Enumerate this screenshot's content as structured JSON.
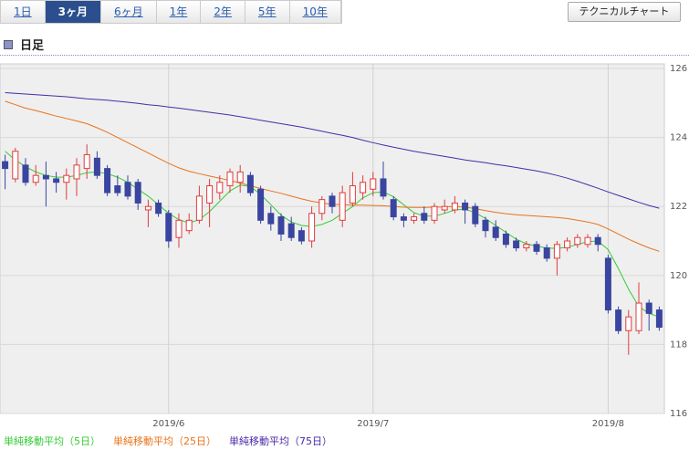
{
  "tabs": [
    "1日",
    "3ヶ月",
    "6ヶ月",
    "1年",
    "2年",
    "5年",
    "10年"
  ],
  "selected_tab_index": 1,
  "technical_button": "テクニカルチャート",
  "section_title": "日足",
  "chart_data": {
    "type": "candlestick",
    "categories": [
      null,
      null,
      null,
      null,
      null,
      null,
      null,
      null,
      null,
      null,
      null,
      null,
      null,
      null,
      null,
      null,
      "2019/6",
      null,
      null,
      null,
      null,
      null,
      null,
      null,
      null,
      null,
      null,
      null,
      null,
      null,
      null,
      null,
      null,
      null,
      null,
      null,
      "2019/7",
      null,
      null,
      null,
      null,
      null,
      null,
      null,
      null,
      null,
      null,
      null,
      null,
      null,
      null,
      null,
      null,
      null,
      null,
      null,
      null,
      null,
      null,
      "2019/8",
      null,
      null,
      null,
      null,
      null
    ],
    "open": [
      123.3,
      122.8,
      123.2,
      122.7,
      122.9,
      122.8,
      122.7,
      122.8,
      123.1,
      123.4,
      123.1,
      122.6,
      122.7,
      122.7,
      121.9,
      122.1,
      121.8,
      121.1,
      121.3,
      121.6,
      122.1,
      122.4,
      122.6,
      122.7,
      122.9,
      122.5,
      121.8,
      121.7,
      121.5,
      121.3,
      121.0,
      121.8,
      122.3,
      121.6,
      122.1,
      122.4,
      122.5,
      122.8,
      122.2,
      121.7,
      121.6,
      121.8,
      121.6,
      121.9,
      121.9,
      122.1,
      122.0,
      121.6,
      121.4,
      121.2,
      121.0,
      120.8,
      120.9,
      120.8,
      120.5,
      120.8,
      120.9,
      120.9,
      121.1,
      120.5,
      119.0,
      118.4,
      118.4,
      119.2,
      119.0
    ],
    "high": [
      123.5,
      123.7,
      123.4,
      123.2,
      123.3,
      123.0,
      123.1,
      123.4,
      123.8,
      123.6,
      123.2,
      122.9,
      122.9,
      122.8,
      122.2,
      122.2,
      121.9,
      121.8,
      121.8,
      122.6,
      122.8,
      122.9,
      123.1,
      123.2,
      123.0,
      122.6,
      122.0,
      121.8,
      121.7,
      121.4,
      122.0,
      122.3,
      122.4,
      122.6,
      123.0,
      122.9,
      123.0,
      123.3,
      122.3,
      121.8,
      121.8,
      122.0,
      122.1,
      122.2,
      122.3,
      122.2,
      122.1,
      121.7,
      121.6,
      121.3,
      121.1,
      121.0,
      121.0,
      120.9,
      121.0,
      121.1,
      121.2,
      121.2,
      121.2,
      120.6,
      119.1,
      119.0,
      119.8,
      119.3,
      119.1
    ],
    "low": [
      122.5,
      122.7,
      122.6,
      122.6,
      122.0,
      122.4,
      122.2,
      122.3,
      122.8,
      122.8,
      122.3,
      122.3,
      122.2,
      121.9,
      121.4,
      121.7,
      120.8,
      120.8,
      121.2,
      121.5,
      121.4,
      122.2,
      122.4,
      122.4,
      122.3,
      121.5,
      121.3,
      121.0,
      121.0,
      120.9,
      120.8,
      121.6,
      121.8,
      121.4,
      122.0,
      122.2,
      122.3,
      122.2,
      121.6,
      121.4,
      121.5,
      121.5,
      121.5,
      121.8,
      121.8,
      121.5,
      121.4,
      121.1,
      121.0,
      120.8,
      120.7,
      120.7,
      120.6,
      120.4,
      120.0,
      120.7,
      120.8,
      120.8,
      120.7,
      118.9,
      118.3,
      117.7,
      118.3,
      118.4,
      118.4
    ],
    "close": [
      123.1,
      123.6,
      122.7,
      122.9,
      122.8,
      122.7,
      122.9,
      123.2,
      123.5,
      122.9,
      122.4,
      122.4,
      122.3,
      122.1,
      122.0,
      121.8,
      121.0,
      121.6,
      121.6,
      122.3,
      122.6,
      122.7,
      123.0,
      123.0,
      122.4,
      121.6,
      121.5,
      121.2,
      121.1,
      121.0,
      121.8,
      122.2,
      122.0,
      122.4,
      122.6,
      122.7,
      122.8,
      122.3,
      121.7,
      121.6,
      121.7,
      121.6,
      122.0,
      122.0,
      122.1,
      121.9,
      121.5,
      121.3,
      121.1,
      120.9,
      120.8,
      120.9,
      120.7,
      120.5,
      120.9,
      121.0,
      121.1,
      121.1,
      120.9,
      119.0,
      118.4,
      118.8,
      119.2,
      118.9,
      118.5
    ],
    "up_color": "#e03c3c",
    "down_color": "#3a45a0",
    "series": [
      {
        "name": "単純移動平均（5日）",
        "color": "#33cc33",
        "values": [
          123.6,
          123.35,
          123.15,
          123.0,
          122.9,
          122.85,
          122.85,
          122.9,
          122.98,
          123.0,
          122.95,
          122.85,
          122.7,
          122.5,
          122.3,
          122.05,
          121.8,
          121.62,
          121.52,
          121.62,
          121.85,
          122.15,
          122.45,
          122.62,
          122.58,
          122.35,
          122.05,
          121.75,
          121.55,
          121.45,
          121.42,
          121.48,
          121.6,
          121.8,
          122.0,
          122.25,
          122.4,
          122.42,
          122.28,
          122.05,
          121.82,
          121.72,
          121.72,
          121.8,
          121.9,
          121.92,
          121.82,
          121.65,
          121.45,
          121.25,
          121.05,
          120.92,
          120.85,
          120.8,
          120.78,
          120.82,
          120.9,
          120.98,
          121.0,
          120.75,
          120.2,
          119.6,
          119.1,
          118.9,
          118.8
        ]
      },
      {
        "name": "単純移動平均（25日）",
        "color": "#e8731a",
        "values": [
          125.05,
          124.95,
          124.85,
          124.78,
          124.7,
          124.62,
          124.55,
          124.48,
          124.4,
          124.28,
          124.15,
          124.0,
          123.85,
          123.7,
          123.55,
          123.4,
          123.25,
          123.12,
          123.02,
          122.95,
          122.88,
          122.82,
          122.75,
          122.68,
          122.6,
          122.52,
          122.45,
          122.38,
          122.3,
          122.22,
          122.15,
          122.1,
          122.06,
          122.05,
          122.04,
          122.04,
          122.03,
          122.02,
          122.0,
          121.98,
          121.97,
          121.97,
          121.98,
          121.99,
          122.0,
          121.98,
          121.94,
          121.88,
          121.83,
          121.79,
          121.76,
          121.74,
          121.72,
          121.7,
          121.68,
          121.65,
          121.6,
          121.55,
          121.48,
          121.35,
          121.2,
          121.05,
          120.92,
          120.8,
          120.7
        ]
      },
      {
        "name": "単純移動平均（75日）",
        "color": "#4a2aa8",
        "values": [
          125.3,
          125.28,
          125.26,
          125.24,
          125.22,
          125.2,
          125.18,
          125.15,
          125.12,
          125.1,
          125.08,
          125.05,
          125.02,
          124.99,
          124.95,
          124.92,
          124.88,
          124.85,
          124.81,
          124.77,
          124.73,
          124.69,
          124.65,
          124.6,
          124.55,
          124.5,
          124.45,
          124.4,
          124.35,
          124.3,
          124.24,
          124.18,
          124.12,
          124.06,
          124.0,
          123.92,
          123.85,
          123.78,
          123.72,
          123.66,
          123.6,
          123.55,
          123.5,
          123.45,
          123.4,
          123.35,
          123.31,
          123.27,
          123.22,
          123.18,
          123.13,
          123.08,
          123.03,
          122.97,
          122.9,
          122.82,
          122.73,
          122.63,
          122.53,
          122.42,
          122.32,
          122.22,
          122.12,
          122.03,
          121.95
        ]
      }
    ],
    "ylim": [
      116,
      126
    ],
    "yticks": [
      116,
      118,
      120,
      122,
      124,
      126
    ],
    "grid": true
  }
}
